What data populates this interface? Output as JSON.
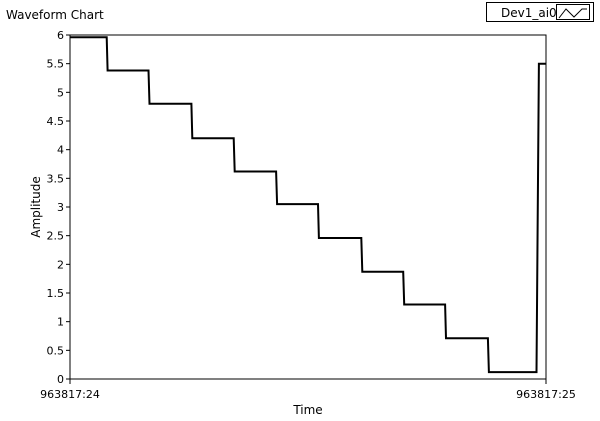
{
  "chart_data": {
    "type": "line",
    "title": "Waveform Chart",
    "xlabel": "Time",
    "ylabel": "Amplitude",
    "xlim": [
      0,
      1
    ],
    "ylim": [
      0,
      6
    ],
    "y_ticks": [
      0,
      0.5,
      1,
      1.5,
      2,
      2.5,
      3,
      3.5,
      4,
      4.5,
      5,
      5.5,
      6
    ],
    "y_tick_labels": [
      "0",
      "0.5",
      "1",
      "1.5",
      "2",
      "2.5",
      "3",
      "3.5",
      "4",
      "4.5",
      "5",
      "5.5",
      "6"
    ],
    "x_ticks": [
      0,
      1
    ],
    "x_tick_labels": [
      "963817:24",
      "963817:25"
    ],
    "grid": false,
    "legend_position": "top-right",
    "series": [
      {
        "name": "Dev1_ai0",
        "color": "#000000",
        "x": [
          0,
          0.077,
          0.079,
          0.165,
          0.167,
          0.255,
          0.257,
          0.344,
          0.346,
          0.433,
          0.435,
          0.521,
          0.523,
          0.612,
          0.614,
          0.7,
          0.702,
          0.788,
          0.79,
          0.878,
          0.88,
          0.963,
          0.966,
          0.98,
          0.985,
          1.0
        ],
        "y": [
          5.96,
          5.96,
          5.38,
          5.38,
          4.8,
          4.8,
          4.2,
          4.2,
          3.62,
          3.62,
          3.05,
          3.05,
          2.46,
          2.46,
          1.87,
          1.87,
          1.3,
          1.3,
          0.71,
          0.71,
          0.12,
          0.12,
          0.12,
          0.12,
          5.5,
          5.5
        ]
      }
    ]
  }
}
